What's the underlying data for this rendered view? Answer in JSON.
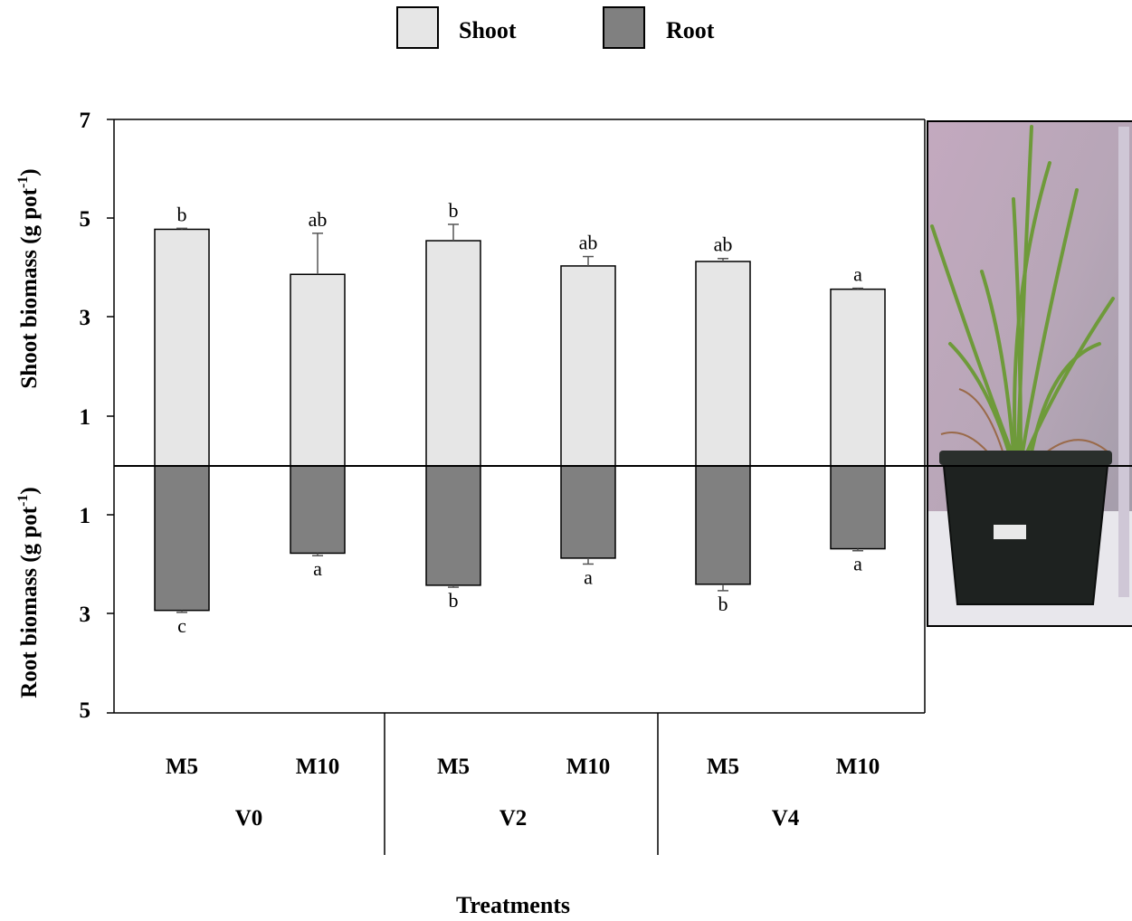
{
  "chart_data": {
    "type": "bar",
    "layout": "mirrored-stacked (shoot above zero line, root below)",
    "legend": {
      "placement": "top-center",
      "items": [
        {
          "label": "Shoot",
          "color": "#e6e6e6"
        },
        {
          "label": "Root",
          "color": "#808080"
        }
      ]
    },
    "categories": [
      "M5",
      "M10",
      "M5",
      "M10",
      "M5",
      "M10"
    ],
    "groups": [
      "V0",
      "V2",
      "V4"
    ],
    "xlabel": "Treatments",
    "ylabel_top": "Shoot biomass (g pot",
    "ylabel_bottom": "Root biomass (g pot",
    "ylabel_superscript": "-1",
    "ylabel_close": ")",
    "y_ticks_top": [
      "7",
      "5",
      "3",
      "1"
    ],
    "y_ticks_bottom": [
      "1",
      "3",
      "5"
    ],
    "shoot_ylim": [
      0,
      7
    ],
    "root_ylim": [
      0,
      5
    ],
    "series": [
      {
        "name": "Shoot",
        "values": [
          4.78,
          3.87,
          4.55,
          4.04,
          4.13,
          3.57
        ],
        "errors": [
          0.02,
          0.83,
          0.33,
          0.19,
          0.06,
          0.02
        ],
        "letters": [
          "b",
          "ab",
          "b",
          "ab",
          "ab",
          "a"
        ]
      },
      {
        "name": "Root",
        "values": [
          2.93,
          1.77,
          2.42,
          1.87,
          2.4,
          1.68
        ],
        "errors": [
          0.04,
          0.05,
          0.04,
          0.12,
          0.13,
          0.04
        ],
        "letters": [
          "c",
          "a",
          "b",
          "a",
          "b",
          "a"
        ]
      }
    ],
    "colors": {
      "shoot": "#e6e6e6",
      "root": "#808080",
      "axis": "#000000",
      "error_bar": "#555555"
    },
    "grid": false
  },
  "photo": {
    "subject": "potted grass plant",
    "colors": {
      "wall": "#b7a4b3",
      "leaf": "#6e9a3a",
      "pot": "#1e2220",
      "floor": "#e8e7ec"
    }
  }
}
